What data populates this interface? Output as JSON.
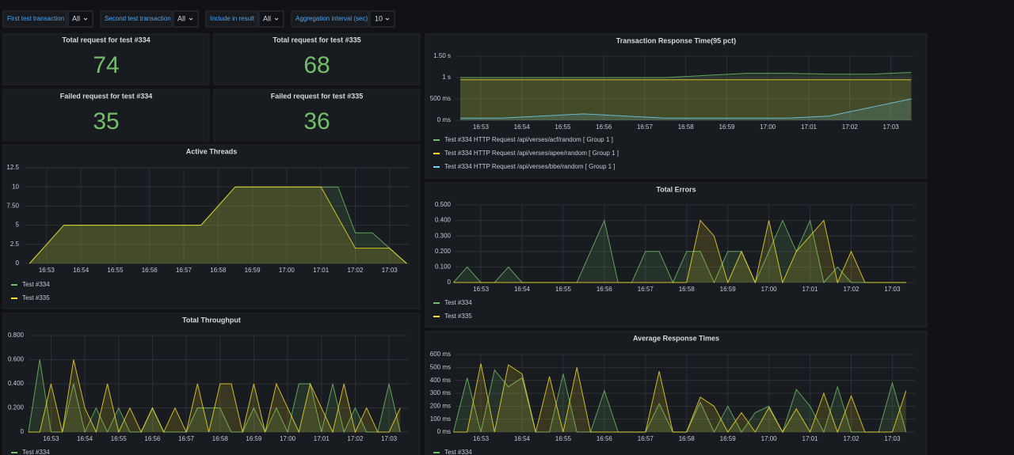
{
  "variables": [
    {
      "label": "First test transaction",
      "value": "All"
    },
    {
      "label": "Second test transaction",
      "value": "All"
    },
    {
      "label": "Include in result",
      "value": "All"
    },
    {
      "label": "Aggregation interval (sec)",
      "value": "10"
    }
  ],
  "stats": [
    {
      "title": "Total request for test #334",
      "value": 74
    },
    {
      "title": "Total request for test #335",
      "value": 68
    },
    {
      "title": "Failed request for test #334",
      "value": 35
    },
    {
      "title": "Failed request for test #335",
      "value": 36
    }
  ],
  "chart_data": [
    {
      "type": "line",
      "title": "Transaction Response Time(95 pct)",
      "x": [
        "16:52:30",
        "16:53:30",
        "16:54:30",
        "16:55:30",
        "16:56:30",
        "16:57:30",
        "16:58:30",
        "16:59:30",
        "17:00:30",
        "17:01:30",
        "17:02:30",
        "17:03:30"
      ],
      "xlim": [
        "16:52:23",
        "17:03:33"
      ],
      "xticks": [
        "16:53",
        "16:54",
        "16:55",
        "16:56",
        "16:57",
        "16:58",
        "16:59",
        "17:00",
        "17:01",
        "17:02",
        "17:03"
      ],
      "ylim": [
        0,
        1.5
      ],
      "yticks": [
        {
          "value": 0,
          "label": "0 ms"
        },
        {
          "value": 0.5,
          "label": "500 ms"
        },
        {
          "value": 1,
          "label": "1 s"
        },
        {
          "value": 1.5,
          "label": "1.50 s"
        }
      ],
      "grid": true,
      "series": [
        {
          "name": "Test #334 HTTP Request /api/verses/acf/random [ Group 1 ]",
          "color": "#73bf69",
          "values": [
            1.0,
            1.0,
            1.0,
            1.0,
            1.0,
            1.0,
            1.05,
            1.1,
            1.1,
            1.08,
            1.08,
            1.12
          ]
        },
        {
          "name": "Test #334 HTTP Request /api/verses/apee/random [ Group 1 ]",
          "color": "#fade2a",
          "values": [
            0.95,
            0.95,
            0.95,
            0.95,
            0.95,
            0.95,
            0.95,
            0.95,
            0.95,
            0.95,
            0.95,
            0.95
          ]
        },
        {
          "name": "Test #334 HTTP Request /api/verses/bbe/random [ Group 1 ]",
          "color": "#73d2f2",
          "values": [
            0.05,
            0.05,
            0.1,
            0.15,
            0.1,
            0.05,
            0.05,
            0.05,
            0.05,
            0.1,
            0.3,
            0.5
          ]
        }
      ]
    },
    {
      "type": "line",
      "title": "Active Threads",
      "x": [
        "16:52:30",
        "16:53:00",
        "16:53:30",
        "16:54:00",
        "16:54:30",
        "16:55:00",
        "16:55:30",
        "16:56:00",
        "16:56:30",
        "16:57:00",
        "16:57:30",
        "16:58:00",
        "16:58:30",
        "16:59:00",
        "16:59:30",
        "17:00:00",
        "17:00:30",
        "17:01:00",
        "17:01:30",
        "17:02:00",
        "17:02:30",
        "17:03:00",
        "17:03:30"
      ],
      "xlim": [
        "16:52:20",
        "17:03:35"
      ],
      "xticks": [
        "16:53",
        "16:54",
        "16:55",
        "16:56",
        "16:57",
        "16:58",
        "16:59",
        "17:00",
        "17:01",
        "17:02",
        "17:03"
      ],
      "ylim": [
        0,
        12.5
      ],
      "yticks": [
        0,
        2.5,
        5,
        {
          "value": 7.5,
          "label": "7.50"
        },
        10,
        12.5
      ],
      "grid": true,
      "series": [
        {
          "name": "Test #334",
          "color": "#73bf69",
          "values": [
            0,
            2.5,
            5,
            5,
            5,
            5,
            5,
            5,
            5,
            5,
            5,
            7.5,
            10,
            10,
            10,
            10,
            10,
            10,
            10,
            4,
            4,
            2,
            0
          ]
        },
        {
          "name": "Test #335",
          "color": "#fade2a",
          "values": [
            0,
            2.5,
            5,
            5,
            5,
            5,
            5,
            5,
            5,
            5,
            5,
            7.5,
            10,
            10,
            10,
            10,
            10,
            10,
            6,
            2,
            2,
            2,
            0
          ]
        }
      ]
    },
    {
      "type": "line",
      "title": "Total Throughput",
      "x": [
        "16:52:20",
        "16:52:40",
        "16:53:00",
        "16:53:20",
        "16:53:40",
        "16:54:00",
        "16:54:20",
        "16:54:40",
        "16:55:00",
        "16:55:20",
        "16:55:40",
        "16:56:00",
        "16:56:20",
        "16:56:40",
        "16:57:00",
        "16:57:20",
        "16:57:40",
        "16:58:00",
        "16:58:20",
        "16:58:40",
        "16:59:00",
        "16:59:20",
        "16:59:40",
        "17:00:00",
        "17:00:20",
        "17:00:40",
        "17:01:00",
        "17:01:20",
        "17:01:40",
        "17:02:00",
        "17:02:20",
        "17:02:40",
        "17:03:00",
        "17:03:20"
      ],
      "xlim": [
        "16:52:20",
        "17:03:35"
      ],
      "xticks": [
        "16:53",
        "16:54",
        "16:55",
        "16:56",
        "16:57",
        "16:58",
        "16:59",
        "17:00",
        "17:01",
        "17:02",
        "17:03"
      ],
      "ylim": [
        0,
        0.8
      ],
      "yticks": [
        0,
        {
          "value": 0.2,
          "label": "0.200"
        },
        {
          "value": 0.4,
          "label": "0.400"
        },
        {
          "value": 0.6,
          "label": "0.600"
        },
        {
          "value": 0.8,
          "label": "0.800"
        }
      ],
      "grid": true,
      "series": [
        {
          "name": "Test #334",
          "color": "#73bf69",
          "values": [
            0,
            0.6,
            0,
            0,
            0.4,
            0,
            0.2,
            0,
            0.2,
            0,
            0,
            0.2,
            0,
            0,
            0,
            0.2,
            0.2,
            0.2,
            0,
            0,
            0.2,
            0,
            0.2,
            0,
            0.4,
            0.4,
            0,
            0.4,
            0,
            0.2,
            0,
            0,
            0.4,
            0
          ]
        },
        {
          "color": "#fade2a",
          "values": [
            0,
            0,
            0.4,
            0,
            0.6,
            0.2,
            0,
            0.4,
            0,
            0.2,
            0,
            0.2,
            0,
            0.2,
            0,
            0.4,
            0,
            0.4,
            0.4,
            0,
            0.4,
            0,
            0.4,
            0.2,
            0,
            0.4,
            0.2,
            0,
            0.4,
            0,
            0.2,
            0,
            0,
            0.2
          ]
        }
      ]
    },
    {
      "type": "line",
      "title": "Total Errors",
      "x": [
        "16:52:20",
        "16:52:40",
        "16:53:00",
        "16:53:20",
        "16:53:40",
        "16:54:00",
        "16:54:20",
        "16:54:40",
        "16:55:00",
        "16:55:20",
        "16:55:40",
        "16:56:00",
        "16:56:20",
        "16:56:40",
        "16:57:00",
        "16:57:20",
        "16:57:40",
        "16:58:00",
        "16:58:20",
        "16:58:40",
        "16:59:00",
        "16:59:20",
        "16:59:40",
        "17:00:00",
        "17:00:20",
        "17:00:40",
        "17:01:00",
        "17:01:20",
        "17:01:40",
        "17:02:00",
        "17:02:20",
        "17:02:40",
        "17:03:00",
        "17:03:20"
      ],
      "xlim": [
        "16:52:23",
        "17:03:33"
      ],
      "xticks": [
        "16:53",
        "16:54",
        "16:55",
        "16:56",
        "16:57",
        "16:58",
        "16:59",
        "17:00",
        "17:01",
        "17:02",
        "17:03"
      ],
      "ylim": [
        0,
        0.5
      ],
      "yticks": [
        0,
        {
          "value": 0.1,
          "label": "0.100"
        },
        {
          "value": 0.2,
          "label": "0.200"
        },
        {
          "value": 0.3,
          "label": "0.300"
        },
        {
          "value": 0.4,
          "label": "0.400"
        },
        {
          "value": 0.5,
          "label": "0.500"
        }
      ],
      "grid": true,
      "series": [
        {
          "name": "Test #334",
          "color": "#73bf69",
          "values": [
            0,
            0.1,
            0,
            0,
            0.1,
            0,
            0,
            0,
            0,
            0,
            0.2,
            0.4,
            0,
            0,
            0.2,
            0.2,
            0,
            0.2,
            0.2,
            0,
            0.2,
            0.2,
            0,
            0.2,
            0.4,
            0.2,
            0.4,
            0,
            0.1,
            0,
            0,
            0,
            0,
            0
          ]
        },
        {
          "name": "Test #335",
          "color": "#fade2a",
          "values": [
            0,
            0,
            0,
            0,
            0,
            0,
            0,
            0,
            0,
            0,
            0,
            0,
            0,
            0,
            0,
            0,
            0,
            0,
            0.4,
            0.3,
            0,
            0.2,
            0,
            0.4,
            0,
            0.2,
            0.3,
            0.4,
            0,
            0.2,
            0,
            0,
            0,
            0
          ]
        }
      ]
    },
    {
      "type": "line",
      "title": "Average Response Times",
      "x": [
        "16:52:20",
        "16:52:40",
        "16:53:00",
        "16:53:20",
        "16:53:40",
        "16:54:00",
        "16:54:20",
        "16:54:40",
        "16:55:00",
        "16:55:20",
        "16:55:40",
        "16:56:00",
        "16:56:20",
        "16:56:40",
        "16:57:00",
        "16:57:20",
        "16:57:40",
        "16:58:00",
        "16:58:20",
        "16:58:40",
        "16:59:00",
        "16:59:20",
        "16:59:40",
        "17:00:00",
        "17:00:20",
        "17:00:40",
        "17:01:00",
        "17:01:20",
        "17:01:40",
        "17:02:00",
        "17:02:20",
        "17:02:40",
        "17:03:00",
        "17:03:20"
      ],
      "xlim": [
        "16:52:23",
        "17:03:33"
      ],
      "xticks": [
        "16:53",
        "16:54",
        "16:55",
        "16:56",
        "16:57",
        "16:58",
        "16:59",
        "17:00",
        "17:01",
        "17:02",
        "17:03"
      ],
      "ylim": [
        0,
        600
      ],
      "yticks": [
        {
          "value": 0,
          "label": "0 ms"
        },
        {
          "value": 100,
          "label": "100 ms"
        },
        {
          "value": 200,
          "label": "200 ms"
        },
        {
          "value": 300,
          "label": "300 ms"
        },
        {
          "value": 400,
          "label": "400 ms"
        },
        {
          "value": 500,
          "label": "500 ms"
        },
        {
          "value": 600,
          "label": "600 ms"
        }
      ],
      "grid": true,
      "series": [
        {
          "name": "Test #334",
          "color": "#73bf69",
          "values": [
            0,
            420,
            0,
            480,
            350,
            420,
            0,
            0,
            450,
            0,
            0,
            320,
            0,
            0,
            0,
            220,
            0,
            0,
            230,
            0,
            200,
            0,
            150,
            200,
            0,
            330,
            200,
            0,
            350,
            0,
            0,
            0,
            380,
            0
          ]
        },
        {
          "color": "#fade2a",
          "values": [
            0,
            0,
            530,
            0,
            520,
            450,
            0,
            430,
            0,
            500,
            0,
            0,
            0,
            0,
            0,
            470,
            0,
            0,
            270,
            200,
            0,
            150,
            0,
            190,
            0,
            180,
            0,
            300,
            0,
            280,
            0,
            0,
            0,
            320
          ]
        }
      ]
    }
  ]
}
